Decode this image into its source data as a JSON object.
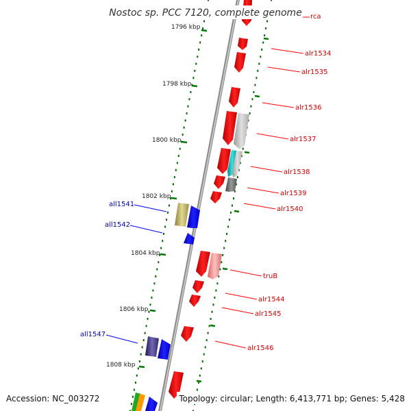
{
  "title": "Nostoc sp. PCC 7120, complete genome",
  "accession": "Accession: NC_003272",
  "topology": "Topology: circular; Length: 6,413,771 bp; Genes: 5,428",
  "colors": {
    "forward": "#ff0000",
    "reverse": "#0000ff",
    "forward_label": "#cc0000",
    "reverse_label": "#0000aa",
    "scale": "#006600",
    "backbone": "#888888"
  },
  "scale_labels": [
    "1796 kbp",
    "1798 kbp",
    "1800 kbp",
    "1802 kbp",
    "1804 kbp",
    "1806 kbp",
    "1808 kbp"
  ],
  "forward_genes": [
    "rca",
    "alr1534",
    "alr1535",
    "alr1536",
    "alr1537",
    "alr1538",
    "alr1539",
    "alr1540",
    "truB",
    "alr1544",
    "alr1545",
    "alr1546"
  ],
  "reverse_genes": [
    "all1541",
    "all1542",
    "all1547"
  ]
}
